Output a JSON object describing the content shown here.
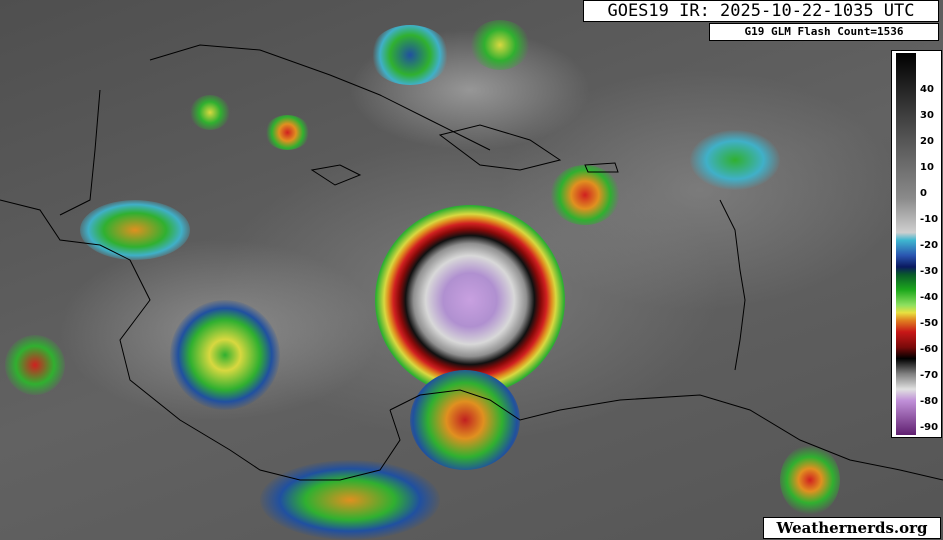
{
  "header": {
    "title": "GOES19 IR: 2025-10-22-1035 UTC",
    "flash_count": "G19 GLM Flash Count=1536"
  },
  "colorbar": {
    "unit_labels": [
      "40",
      "30",
      "20",
      "10",
      "0",
      "-10",
      "-20",
      "-30",
      "-40",
      "-50",
      "-60",
      "-70",
      "-80",
      "-90"
    ],
    "colors": {
      "warm": "#000000",
      "cold_gray": "#d0d0d0",
      "cyan": "#3fb7d0",
      "blue": "#2a55b0",
      "green": "#1ca81c",
      "yellow": "#e8e040",
      "red": "#c81818",
      "purple": "#602070"
    }
  },
  "watermark": "Weathernerds.org"
}
